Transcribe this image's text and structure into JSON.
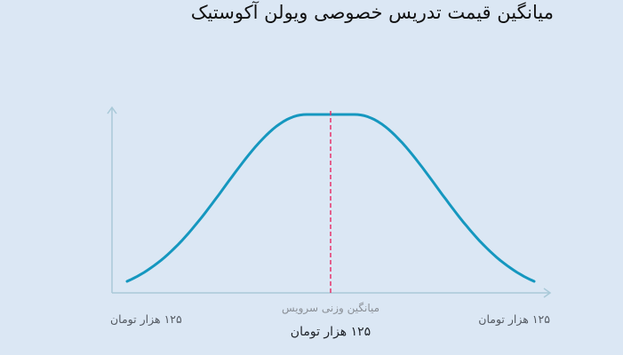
{
  "title": "میانگین قیمت تدریس خصوصی ویولن آکوستیک",
  "colors": {
    "background": "#dbe7f4",
    "curve": "#1597bf",
    "marker": "#e8336b",
    "axis": "#a9c9d8"
  },
  "chart_data": {
    "type": "line",
    "title": "میانگین قیمت تدریس خصوصی ویولن آکوستیک",
    "x_labels": {
      "min": "۱۲۵ هزار تومان",
      "max": "۱۲۵ هزار تومان"
    },
    "marker": {
      "caption": "میانگین وزنی سرویس",
      "value": "۱۲۵ هزار تومان",
      "position": 0.5
    },
    "grid": false,
    "legend": "none"
  }
}
